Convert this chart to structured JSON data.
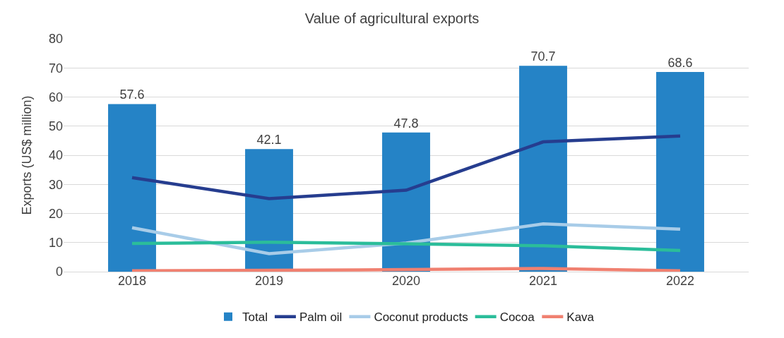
{
  "chart_data": {
    "type": "bar",
    "title": "Value of agricultural exports",
    "ylabel": "Exports (US$ million)",
    "categories": [
      "2018",
      "2019",
      "2020",
      "2021",
      "2022"
    ],
    "series": [
      {
        "name": "Total",
        "color": "#2583c6",
        "values": [
          57.6,
          42.1,
          47.8,
          70.7,
          68.6
        ],
        "data_labels": true
      },
      {
        "name": "Palm oil",
        "type": "line",
        "color": "#263d8f",
        "values": [
          32.3,
          25.1,
          28,
          44.6,
          46.6
        ]
      },
      {
        "name": "Coconut products",
        "type": "line",
        "color": "#a8cce8",
        "values": [
          15.1,
          6.2,
          9.8,
          16.4,
          14.6
        ]
      },
      {
        "name": "Cocoa",
        "type": "line",
        "color": "#2bbd9a",
        "values": [
          9.7,
          10.1,
          9.6,
          8.9,
          7.3
        ]
      },
      {
        "name": "Kava",
        "type": "line",
        "color": "#f08070",
        "values": [
          0.3,
          0.5,
          0.7,
          1.1,
          0.3
        ]
      }
    ],
    "ylim": [
      0,
      80
    ],
    "yticks": [
      0,
      10,
      20,
      30,
      40,
      50,
      60,
      70,
      80
    ],
    "grid": "y",
    "legend": "bottom",
    "marker": "none",
    "line_style": "solid"
  }
}
